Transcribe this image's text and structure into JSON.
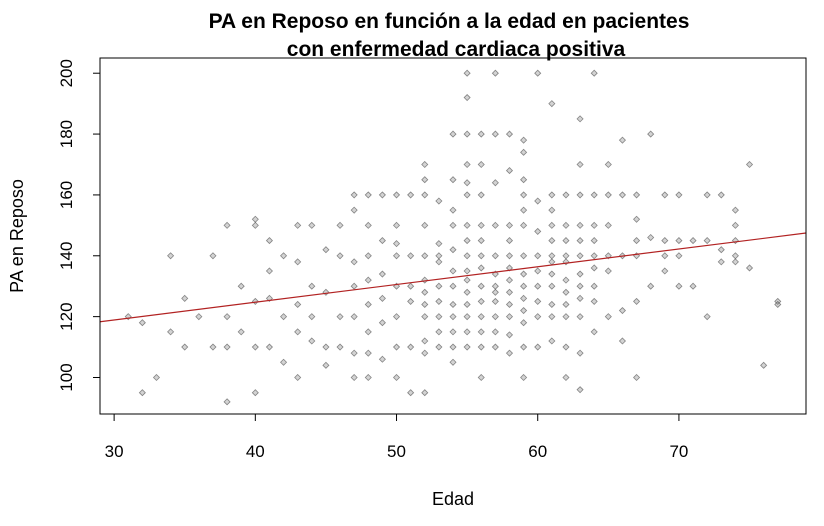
{
  "chart_data": {
    "type": "scatter",
    "title_line1": "PA en Reposo en función a la edad en pacientes",
    "title_line2": "con enfermedad cardiaca positiva",
    "xlabel": "Edad",
    "ylabel": "PA en Reposo",
    "xlim": [
      29,
      79
    ],
    "ylim": [
      88,
      205
    ],
    "x_ticks": [
      30,
      40,
      50,
      60,
      70
    ],
    "y_ticks": [
      100,
      120,
      140,
      160,
      180,
      200
    ],
    "grid": false,
    "legend": "none",
    "point_color": "#808080",
    "line_color": "#b22222",
    "regression_line": {
      "intercept": 101.4,
      "slope": 0.5833
    },
    "points": [
      [
        31,
        120
      ],
      [
        32,
        118
      ],
      [
        32,
        95
      ],
      [
        33,
        100
      ],
      [
        34,
        140
      ],
      [
        34,
        115
      ],
      [
        35,
        126
      ],
      [
        35,
        110
      ],
      [
        36,
        120
      ],
      [
        37,
        110
      ],
      [
        37,
        140
      ],
      [
        38,
        150
      ],
      [
        38,
        120
      ],
      [
        38,
        110
      ],
      [
        38,
        92
      ],
      [
        39,
        130
      ],
      [
        39,
        115
      ],
      [
        40,
        152
      ],
      [
        40,
        150
      ],
      [
        40,
        125
      ],
      [
        40,
        110
      ],
      [
        40,
        95
      ],
      [
        41,
        145
      ],
      [
        41,
        135
      ],
      [
        41,
        126
      ],
      [
        41,
        110
      ],
      [
        42,
        140
      ],
      [
        42,
        120
      ],
      [
        42,
        105
      ],
      [
        43,
        150
      ],
      [
        43,
        138
      ],
      [
        43,
        124
      ],
      [
        43,
        115
      ],
      [
        43,
        100
      ],
      [
        44,
        150
      ],
      [
        44,
        130
      ],
      [
        44,
        120
      ],
      [
        44,
        112
      ],
      [
        45,
        142
      ],
      [
        45,
        128
      ],
      [
        45,
        110
      ],
      [
        45,
        104
      ],
      [
        46,
        150
      ],
      [
        46,
        140
      ],
      [
        46,
        120
      ],
      [
        46,
        110
      ],
      [
        47,
        160
      ],
      [
        47,
        155
      ],
      [
        47,
        138
      ],
      [
        47,
        130
      ],
      [
        47,
        120
      ],
      [
        47,
        108
      ],
      [
        47,
        100
      ],
      [
        48,
        160
      ],
      [
        48,
        150
      ],
      [
        48,
        140
      ],
      [
        48,
        132
      ],
      [
        48,
        124
      ],
      [
        48,
        115
      ],
      [
        48,
        108
      ],
      [
        48,
        100
      ],
      [
        49,
        160
      ],
      [
        49,
        145
      ],
      [
        49,
        134
      ],
      [
        49,
        126
      ],
      [
        49,
        118
      ],
      [
        49,
        106
      ],
      [
        50,
        160
      ],
      [
        50,
        150
      ],
      [
        50,
        144
      ],
      [
        50,
        140
      ],
      [
        50,
        130
      ],
      [
        50,
        120
      ],
      [
        50,
        110
      ],
      [
        50,
        100
      ],
      [
        51,
        160
      ],
      [
        51,
        140
      ],
      [
        51,
        130
      ],
      [
        51,
        125
      ],
      [
        51,
        110
      ],
      [
        51,
        95
      ],
      [
        52,
        170
      ],
      [
        52,
        165
      ],
      [
        52,
        160
      ],
      [
        52,
        150
      ],
      [
        52,
        140
      ],
      [
        52,
        132
      ],
      [
        52,
        128
      ],
      [
        52,
        124
      ],
      [
        52,
        120
      ],
      [
        52,
        112
      ],
      [
        52,
        108
      ],
      [
        52,
        95
      ],
      [
        53,
        158
      ],
      [
        53,
        144
      ],
      [
        53,
        140
      ],
      [
        53,
        138
      ],
      [
        53,
        130
      ],
      [
        53,
        125
      ],
      [
        53,
        120
      ],
      [
        53,
        115
      ],
      [
        53,
        110
      ],
      [
        54,
        180
      ],
      [
        54,
        165
      ],
      [
        54,
        155
      ],
      [
        54,
        150
      ],
      [
        54,
        142
      ],
      [
        54,
        135
      ],
      [
        54,
        130
      ],
      [
        54,
        124
      ],
      [
        54,
        120
      ],
      [
        54,
        115
      ],
      [
        54,
        110
      ],
      [
        54,
        105
      ],
      [
        55,
        200
      ],
      [
        55,
        192
      ],
      [
        55,
        180
      ],
      [
        55,
        170
      ],
      [
        55,
        164
      ],
      [
        55,
        160
      ],
      [
        55,
        150
      ],
      [
        55,
        145
      ],
      [
        55,
        140
      ],
      [
        55,
        135
      ],
      [
        55,
        132
      ],
      [
        55,
        128
      ],
      [
        55,
        124
      ],
      [
        55,
        120
      ],
      [
        55,
        115
      ],
      [
        55,
        110
      ],
      [
        56,
        180
      ],
      [
        56,
        170
      ],
      [
        56,
        160
      ],
      [
        56,
        150
      ],
      [
        56,
        145
      ],
      [
        56,
        140
      ],
      [
        56,
        136
      ],
      [
        56,
        130
      ],
      [
        56,
        125
      ],
      [
        56,
        120
      ],
      [
        56,
        115
      ],
      [
        56,
        110
      ],
      [
        56,
        100
      ],
      [
        57,
        200
      ],
      [
        57,
        180
      ],
      [
        57,
        164
      ],
      [
        57,
        150
      ],
      [
        57,
        140
      ],
      [
        57,
        134
      ],
      [
        57,
        130
      ],
      [
        57,
        128
      ],
      [
        57,
        125
      ],
      [
        57,
        120
      ],
      [
        57,
        115
      ],
      [
        57,
        110
      ],
      [
        58,
        180
      ],
      [
        58,
        168
      ],
      [
        58,
        150
      ],
      [
        58,
        145
      ],
      [
        58,
        140
      ],
      [
        58,
        136
      ],
      [
        58,
        132
      ],
      [
        58,
        128
      ],
      [
        58,
        124
      ],
      [
        58,
        120
      ],
      [
        58,
        114
      ],
      [
        58,
        108
      ],
      [
        59,
        178
      ],
      [
        59,
        174
      ],
      [
        59,
        165
      ],
      [
        59,
        160
      ],
      [
        59,
        155
      ],
      [
        59,
        150
      ],
      [
        59,
        140
      ],
      [
        59,
        134
      ],
      [
        59,
        130
      ],
      [
        59,
        126
      ],
      [
        59,
        122
      ],
      [
        59,
        118
      ],
      [
        59,
        110
      ],
      [
        59,
        100
      ],
      [
        60,
        200
      ],
      [
        60,
        158
      ],
      [
        60,
        148
      ],
      [
        60,
        140
      ],
      [
        60,
        135
      ],
      [
        60,
        130
      ],
      [
        60,
        125
      ],
      [
        60,
        120
      ],
      [
        60,
        110
      ],
      [
        61,
        190
      ],
      [
        61,
        160
      ],
      [
        61,
        155
      ],
      [
        61,
        150
      ],
      [
        61,
        145
      ],
      [
        61,
        140
      ],
      [
        61,
        138
      ],
      [
        61,
        134
      ],
      [
        61,
        130
      ],
      [
        61,
        124
      ],
      [
        61,
        120
      ],
      [
        61,
        112
      ],
      [
        62,
        160
      ],
      [
        62,
        150
      ],
      [
        62,
        145
      ],
      [
        62,
        140
      ],
      [
        62,
        138
      ],
      [
        62,
        132
      ],
      [
        62,
        128
      ],
      [
        62,
        124
      ],
      [
        62,
        120
      ],
      [
        62,
        110
      ],
      [
        62,
        100
      ],
      [
        63,
        185
      ],
      [
        63,
        170
      ],
      [
        63,
        160
      ],
      [
        63,
        150
      ],
      [
        63,
        145
      ],
      [
        63,
        140
      ],
      [
        63,
        134
      ],
      [
        63,
        130
      ],
      [
        63,
        126
      ],
      [
        63,
        120
      ],
      [
        63,
        108
      ],
      [
        63,
        96
      ],
      [
        64,
        200
      ],
      [
        64,
        160
      ],
      [
        64,
        150
      ],
      [
        64,
        145
      ],
      [
        64,
        140
      ],
      [
        64,
        136
      ],
      [
        64,
        130
      ],
      [
        64,
        125
      ],
      [
        64,
        115
      ],
      [
        65,
        170
      ],
      [
        65,
        160
      ],
      [
        65,
        150
      ],
      [
        65,
        140
      ],
      [
        65,
        135
      ],
      [
        65,
        120
      ],
      [
        66,
        178
      ],
      [
        66,
        160
      ],
      [
        66,
        140
      ],
      [
        66,
        122
      ],
      [
        66,
        112
      ],
      [
        67,
        160
      ],
      [
        67,
        152
      ],
      [
        67,
        145
      ],
      [
        67,
        140
      ],
      [
        67,
        125
      ],
      [
        67,
        100
      ],
      [
        68,
        180
      ],
      [
        68,
        146
      ],
      [
        68,
        130
      ],
      [
        69,
        160
      ],
      [
        69,
        145
      ],
      [
        69,
        140
      ],
      [
        69,
        135
      ],
      [
        70,
        160
      ],
      [
        70,
        145
      ],
      [
        70,
        140
      ],
      [
        70,
        130
      ],
      [
        71,
        145
      ],
      [
        71,
        130
      ],
      [
        72,
        160
      ],
      [
        72,
        145
      ],
      [
        72,
        120
      ],
      [
        73,
        160
      ],
      [
        73,
        142
      ],
      [
        73,
        138
      ],
      [
        74,
        155
      ],
      [
        74,
        150
      ],
      [
        74,
        145
      ],
      [
        74,
        140
      ],
      [
        74,
        138
      ],
      [
        75,
        170
      ],
      [
        75,
        136
      ],
      [
        76,
        104
      ],
      [
        77,
        125
      ],
      [
        77,
        124
      ]
    ]
  }
}
